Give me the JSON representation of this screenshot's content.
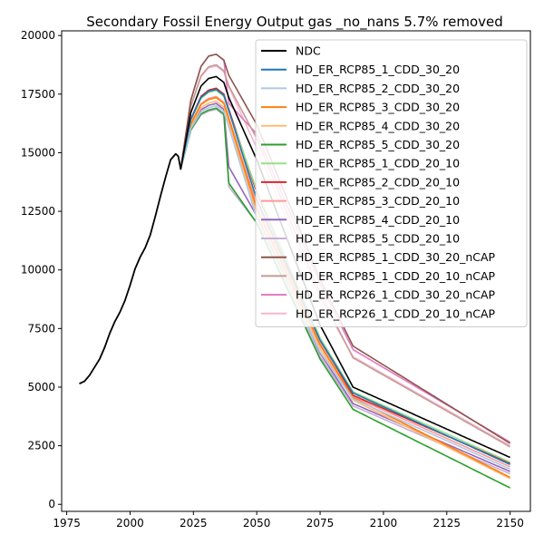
{
  "chart_data": {
    "type": "line",
    "title": "Secondary Fossil Energy Output gas _no_nans 5.7% removed",
    "xlabel": "",
    "ylabel": "",
    "xlim": [
      1973,
      2158
    ],
    "ylim": [
      -300,
      20200
    ],
    "xticks": [
      1975,
      2000,
      2025,
      2050,
      2075,
      2100,
      2125,
      2150
    ],
    "yticks": [
      0,
      2500,
      5000,
      7500,
      10000,
      12500,
      15000,
      17500,
      20000
    ],
    "legend_position": "upper right",
    "grid": false,
    "history": {
      "x": [
        1980,
        1982,
        1984,
        1986,
        1988,
        1990,
        1992,
        1994,
        1996,
        1998,
        2000,
        2002,
        2004,
        2006,
        2008,
        2010,
        2012,
        2014,
        2016,
        2018,
        2019
      ],
      "y": [
        5150,
        5250,
        5500,
        5850,
        6200,
        6700,
        7300,
        7800,
        8200,
        8700,
        9350,
        10050,
        10550,
        10950,
        11500,
        12300,
        13150,
        13950,
        14700,
        14950,
        14850
      ]
    },
    "series": [
      {
        "name": "NDC",
        "color": "#000000",
        "peak": 18250,
        "y2050": 14700,
        "y2075": 7650,
        "y2088": 5000,
        "y2150": 2000,
        "drop": 0
      },
      {
        "name": "HD_ER_RCP85_1_CDD_30_20",
        "color": "#1f77b4",
        "peak": 17700,
        "y2050": 13000,
        "y2075": 7000,
        "y2088": 4750,
        "y2150": 1700,
        "drop": 0
      },
      {
        "name": "HD_ER_RCP85_2_CDD_30_20",
        "color": "#aec7e8",
        "peak": 17000,
        "y2050": 12200,
        "y2075": 6500,
        "y2088": 4500,
        "y2150": 1500,
        "drop": 0
      },
      {
        "name": "HD_ER_RCP85_3_CDD_30_20",
        "color": "#ff7f0e",
        "peak": 17350,
        "y2050": 12600,
        "y2075": 6800,
        "y2088": 4550,
        "y2150": 1150,
        "drop": 0
      },
      {
        "name": "HD_ER_RCP85_4_CDD_30_20",
        "color": "#ffbb78",
        "peak": 17200,
        "y2050": 12400,
        "y2075": 6650,
        "y2088": 4450,
        "y2150": 1100,
        "drop": 0
      },
      {
        "name": "HD_ER_RCP85_5_CDD_30_20",
        "color": "#2ca02c",
        "peak": 16900,
        "y2050": 12000,
        "y2075": 6200,
        "y2088": 4050,
        "y2150": 700,
        "drop": 2300
      },
      {
        "name": "HD_ER_RCP85_1_CDD_20_10",
        "color": "#98df8a",
        "peak": 17650,
        "y2050": 13400,
        "y2075": 7100,
        "y2088": 4800,
        "y2150": 1800,
        "drop": 0
      },
      {
        "name": "HD_ER_RCP85_2_CDD_20_10",
        "color": "#d62728",
        "peak": 17750,
        "y2050": 13300,
        "y2075": 7050,
        "y2088": 4650,
        "y2150": 1750,
        "drop": 0
      },
      {
        "name": "HD_ER_RCP85_3_CDD_20_10",
        "color": "#ff9896",
        "peak": 17400,
        "y2050": 12800,
        "y2075": 6900,
        "y2088": 4600,
        "y2150": 1600,
        "drop": 0
      },
      {
        "name": "HD_ER_RCP85_4_CDD_20_10",
        "color": "#9467bd",
        "peak": 17100,
        "y2050": 12300,
        "y2075": 6450,
        "y2088": 4300,
        "y2150": 1400,
        "drop": 1800
      },
      {
        "name": "HD_ER_RCP85_5_CDD_20_10",
        "color": "#c5b0d5",
        "peak": 16850,
        "y2050": 12000,
        "y2075": 6300,
        "y2088": 4200,
        "y2150": 1300,
        "drop": 2400
      },
      {
        "name": "HD_ER_RCP85_1_CDD_30_20_nCAP",
        "color": "#8c564b",
        "peak": 19200,
        "y2050": 16200,
        "y2075": 9600,
        "y2088": 6750,
        "y2150": 2600,
        "drop": 0
      },
      {
        "name": "HD_ER_RCP85_1_CDD_20_10_nCAP",
        "color": "#c49c94",
        "peak": 18750,
        "y2050": 15600,
        "y2075": 9000,
        "y2088": 6250,
        "y2150": 2450,
        "drop": 0
      },
      {
        "name": "HD_ER_RCP26_1_CDD_30_20_nCAP",
        "color": "#e377c2",
        "peak": 19200,
        "y2050": 15800,
        "y2075": 9400,
        "y2088": 6600,
        "y2150": 2650,
        "drop": 1200
      },
      {
        "name": "HD_ER_RCP26_1_CDD_20_10_nCAP",
        "color": "#f7b6d2",
        "peak": 18700,
        "y2050": 15200,
        "y2075": 8800,
        "y2088": 6300,
        "y2150": 2500,
        "drop": 0
      }
    ]
  }
}
